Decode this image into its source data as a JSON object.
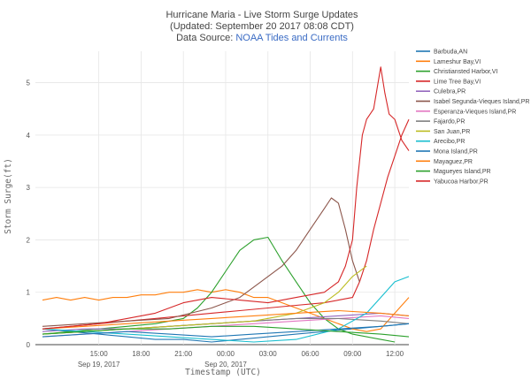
{
  "chart_data": {
    "type": "line",
    "title_line1": "Hurricane Maria - Live Storm Surge Updates",
    "title_line2": "(Updated: September 20 2017 08:08 CDT)",
    "title_line3_prefix": "Data Source: ",
    "title_line3_link": "NOAA Tides and Currents",
    "xlabel": "Timestamp (UTC)",
    "ylabel": "Storm Surge(ft)",
    "xlim": [
      10.5,
      37.0
    ],
    "ylim": [
      0,
      5.6
    ],
    "grid": true,
    "legend_position": "right",
    "x_ticks": [
      {
        "value": 15,
        "label": "15:00",
        "sublabel": "Sep 19, 2017"
      },
      {
        "value": 18,
        "label": "18:00",
        "sublabel": ""
      },
      {
        "value": 21,
        "label": "21:00",
        "sublabel": ""
      },
      {
        "value": 24,
        "label": "00:00",
        "sublabel": "Sep 20, 2017"
      },
      {
        "value": 27,
        "label": "03:00",
        "sublabel": ""
      },
      {
        "value": 30,
        "label": "06:00",
        "sublabel": ""
      },
      {
        "value": 33,
        "label": "09:00",
        "sublabel": ""
      },
      {
        "value": 36,
        "label": "12:00",
        "sublabel": ""
      }
    ],
    "y_ticks": [
      {
        "value": 0,
        "label": "0"
      },
      {
        "value": 1,
        "label": "1"
      },
      {
        "value": 2,
        "label": "2"
      },
      {
        "value": 3,
        "label": "3"
      },
      {
        "value": 4,
        "label": "4"
      },
      {
        "value": 5,
        "label": "5"
      }
    ],
    "series": [
      {
        "name": "Barbuda,AN",
        "color": "#1f77b4",
        "x": [
          11,
          13,
          15,
          17,
          19,
          21,
          23,
          25,
          27,
          29,
          31,
          33,
          35,
          37
        ],
        "y": [
          0.3,
          0.25,
          0.2,
          0.15,
          0.1,
          0.1,
          0.05,
          0.1,
          0.15,
          0.2,
          0.25,
          0.3,
          0.35,
          0.4
        ]
      },
      {
        "name": "Lameshur Bay,VI",
        "color": "#ff7f0e",
        "x": [
          11,
          12,
          13,
          14,
          15,
          16,
          17,
          18,
          19,
          20,
          21,
          22,
          23,
          24,
          25,
          26,
          27,
          28,
          29,
          30,
          31,
          32,
          33,
          34,
          35,
          36,
          37
        ],
        "y": [
          0.85,
          0.9,
          0.85,
          0.9,
          0.85,
          0.9,
          0.9,
          0.95,
          0.95,
          1.0,
          1.0,
          1.05,
          1.0,
          1.05,
          1.0,
          0.9,
          0.9,
          0.8,
          0.7,
          0.6,
          0.5,
          0.4,
          0.3,
          0.25,
          0.3,
          0.6,
          0.9
        ]
      },
      {
        "name": "Christiansted Harbor,VI",
        "color": "#2ca02c",
        "x": [
          11,
          13,
          15,
          17,
          19,
          21,
          22,
          23,
          24,
          25,
          26,
          27,
          28,
          29,
          30,
          31,
          32,
          33,
          34,
          35,
          36
        ],
        "y": [
          0.2,
          0.25,
          0.3,
          0.35,
          0.4,
          0.5,
          0.7,
          1.0,
          1.4,
          1.8,
          2.0,
          2.05,
          1.6,
          1.2,
          0.8,
          0.5,
          0.3,
          0.2,
          0.15,
          0.1,
          0.05
        ]
      },
      {
        "name": "Lime Tree Bay,VI",
        "color": "#d62728",
        "x": [
          11,
          13,
          15,
          17,
          19,
          21,
          23,
          25,
          27,
          29,
          31,
          32,
          33,
          33.5,
          34,
          34.5,
          35,
          35.5,
          36,
          36.5,
          37
        ],
        "y": [
          0.3,
          0.35,
          0.4,
          0.45,
          0.5,
          0.55,
          0.6,
          0.65,
          0.7,
          0.75,
          0.8,
          0.85,
          0.9,
          1.2,
          1.6,
          2.2,
          2.7,
          3.2,
          3.6,
          4.0,
          4.3
        ]
      },
      {
        "name": "Culebra,PR",
        "color": "#9467bd",
        "x": [
          11,
          14,
          17,
          20,
          23,
          26,
          29,
          32,
          35,
          37
        ],
        "y": [
          0.25,
          0.3,
          0.3,
          0.35,
          0.4,
          0.45,
          0.5,
          0.55,
          0.6,
          0.55
        ]
      },
      {
        "name": "Isabel Segunda-Vieques Island,PR",
        "color": "#8c564b",
        "x": [
          11,
          14,
          17,
          20,
          23,
          25,
          26,
          27,
          28,
          29,
          30,
          31,
          31.5,
          32,
          32.5,
          33,
          33.5
        ],
        "y": [
          0.35,
          0.4,
          0.45,
          0.5,
          0.7,
          0.9,
          1.1,
          1.3,
          1.5,
          1.8,
          2.2,
          2.6,
          2.8,
          2.7,
          2.2,
          1.6,
          1.2
        ]
      },
      {
        "name": "Esperanza-Vieques Island,PR",
        "color": "#e377c2",
        "x": [
          11,
          14,
          17,
          20,
          23,
          26,
          29,
          32,
          35,
          37
        ],
        "y": [
          0.15,
          0.2,
          0.25,
          0.3,
          0.35,
          0.4,
          0.45,
          0.5,
          0.55,
          0.5
        ]
      },
      {
        "name": "Fajardo,PR",
        "color": "#7f7f7f",
        "x": [
          11,
          14,
          17,
          20,
          23,
          26,
          29,
          32,
          35,
          37
        ],
        "y": [
          0.2,
          0.25,
          0.3,
          0.35,
          0.4,
          0.45,
          0.5,
          0.5,
          0.45,
          0.4
        ]
      },
      {
        "name": "San Juan,PR",
        "color": "#bcbd22",
        "x": [
          11,
          14,
          17,
          20,
          23,
          26,
          29,
          31,
          32,
          33,
          34
        ],
        "y": [
          0.2,
          0.25,
          0.3,
          0.35,
          0.4,
          0.45,
          0.6,
          0.8,
          1.0,
          1.3,
          1.5
        ]
      },
      {
        "name": "Arecibo,PR",
        "color": "#17becf",
        "x": [
          11,
          14,
          17,
          20,
          23,
          26,
          29,
          32,
          34,
          35,
          36,
          37
        ],
        "y": [
          0.3,
          0.25,
          0.2,
          0.15,
          0.1,
          0.05,
          0.1,
          0.3,
          0.6,
          0.9,
          1.2,
          1.3
        ]
      },
      {
        "name": "Mona Island,PR",
        "color": "#1f77b4",
        "x": [
          11,
          14,
          17,
          20,
          23,
          26,
          29,
          32,
          35,
          37
        ],
        "y": [
          0.15,
          0.2,
          0.25,
          0.2,
          0.15,
          0.2,
          0.25,
          0.3,
          0.35,
          0.4
        ]
      },
      {
        "name": "Mayaguez,PR",
        "color": "#ff7f0e",
        "x": [
          11,
          14,
          17,
          20,
          23,
          26,
          29,
          32,
          35,
          37
        ],
        "y": [
          0.3,
          0.35,
          0.4,
          0.45,
          0.5,
          0.55,
          0.6,
          0.65,
          0.6,
          0.55
        ]
      },
      {
        "name": "Magueyes Island,PR",
        "color": "#2ca02c",
        "x": [
          11,
          14,
          17,
          20,
          23,
          26,
          29,
          32,
          35,
          37
        ],
        "y": [
          0.2,
          0.25,
          0.3,
          0.3,
          0.35,
          0.35,
          0.3,
          0.25,
          0.2,
          0.15
        ]
      },
      {
        "name": "Yabucoa Harbor,PR",
        "color": "#d62728",
        "x": [
          11,
          13,
          15,
          17,
          19,
          21,
          23,
          25,
          27,
          29,
          31,
          32,
          32.5,
          33,
          33.3,
          33.7,
          34,
          34.5,
          35,
          35.3,
          35.6,
          36,
          36.5,
          37
        ],
        "y": [
          0.3,
          0.35,
          0.4,
          0.5,
          0.6,
          0.8,
          0.9,
          0.85,
          0.8,
          0.9,
          1.0,
          1.2,
          1.5,
          2.0,
          3.0,
          4.0,
          4.3,
          4.5,
          5.3,
          4.8,
          4.4,
          4.3,
          3.9,
          3.7
        ]
      }
    ]
  }
}
